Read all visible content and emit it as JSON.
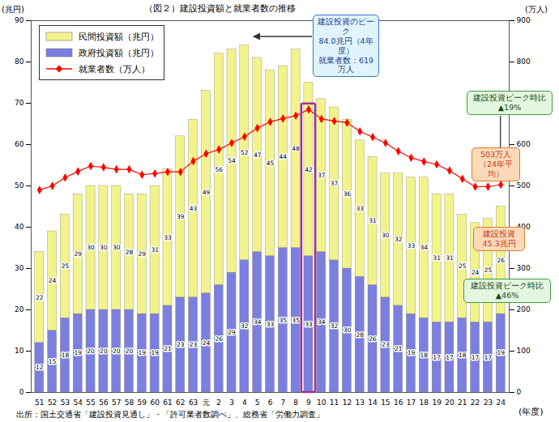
{
  "chart_data": {
    "type": "bar",
    "title": "（図２）建設投資額と就業者数の推移",
    "caption": "出所：国土交通省「建設投資見通し」・「許可業者数調べ」、総務省「労働力調査」",
    "y_label": "(兆円)",
    "y2_label": "(万人)",
    "x_label": "(年度)",
    "categories": [
      "51",
      "52",
      "53",
      "54",
      "55",
      "56",
      "57",
      "58",
      "59",
      "60",
      "61",
      "62",
      "63",
      "元",
      "2",
      "3",
      "4",
      "5",
      "6",
      "7",
      "8",
      "9",
      "10",
      "11",
      "12",
      "13",
      "14",
      "15",
      "16",
      "17",
      "18",
      "19",
      "20",
      "21",
      "22",
      "23",
      "24"
    ],
    "series": [
      {
        "name": "民間投資額（兆円）",
        "color": "#f3f38e",
        "values": [
          22,
          24,
          25,
          29,
          30,
          30,
          30,
          28,
          29,
          31,
          33,
          39,
          43,
          49,
          56,
          54,
          52,
          47,
          45,
          44,
          48,
          42,
          37,
          37,
          36,
          33,
          31,
          30,
          32,
          33,
          34,
          31,
          31,
          25,
          24,
          25,
          26
        ]
      },
      {
        "name": "政府投資額（兆円）",
        "color": "#7b7fe0",
        "values": [
          12,
          15,
          18,
          19,
          20,
          20,
          20,
          20,
          19,
          19,
          21,
          23,
          23,
          24,
          26,
          29,
          32,
          34,
          33,
          35,
          35,
          33,
          34,
          32,
          30,
          28,
          26,
          23,
          21,
          19,
          18,
          17,
          17,
          18,
          17,
          17,
          19
        ]
      },
      {
        "name": "就業者数（万人）",
        "type": "line",
        "axis": "y2",
        "color": "#ff0000",
        "marker": "diamond",
        "values": [
          490,
          500,
          520,
          535,
          548,
          545,
          540,
          540,
          527,
          530,
          534,
          534,
          560,
          578,
          588,
          604,
          619,
          640,
          655,
          663,
          670,
          685,
          662,
          657,
          653,
          632,
          618,
          604,
          584,
          568,
          559,
          552,
          537,
          517,
          498,
          498,
          503
        ]
      }
    ],
    "stacked": true,
    "data_labels": true,
    "ylim": [
      0,
      90
    ],
    "yticks": [
      0,
      10,
      20,
      30,
      40,
      50,
      60,
      70,
      80,
      90
    ],
    "y2lim": [
      0,
      900
    ],
    "y2ticks": [
      0,
      100,
      200,
      300,
      400,
      500,
      600,
      700,
      800,
      900
    ],
    "grid": false,
    "legend": "top-left",
    "annotations": [
      {
        "text": "建設投資のピーク\n84.0兆円（4年度）\n就業者数：619万人"
      },
      {
        "text": "建設投資ピーク時比\n▲19%"
      },
      {
        "text": "503万人\n（24年平均）"
      },
      {
        "text": "建設投資\n45.3兆円"
      },
      {
        "text": "建設投資ピーク時比\n▲46%"
      }
    ]
  }
}
